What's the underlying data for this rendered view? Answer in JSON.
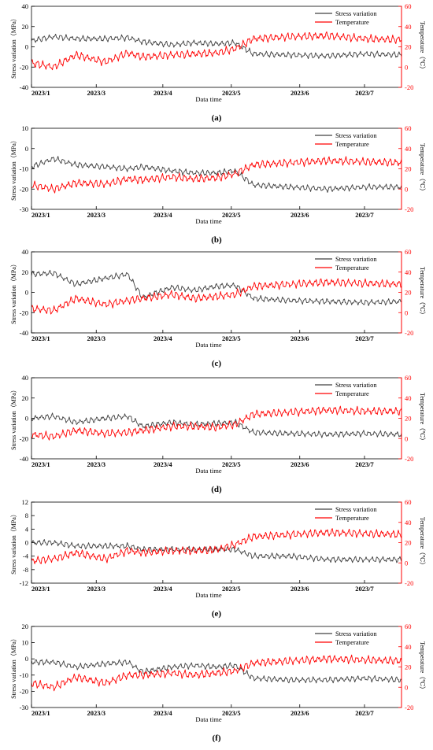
{
  "figure": {
    "colors": {
      "stress": "#404040",
      "temperature": "#ff0000",
      "axis": "#000000"
    },
    "xlabel": "Data time",
    "x_ticks": [
      "2023/1",
      "2023/3",
      "2023/4",
      "2023/5",
      "2023/6",
      "2023/7"
    ],
    "legend": {
      "stress": "Stress variation",
      "temperature": "Temperature"
    },
    "y_left_label": "Stress variation（MPa）",
    "y_right_label": "Temperature（℃）"
  },
  "chart_data": [
    {
      "type": "line",
      "panel_label": "(a)",
      "ylim": [
        -40,
        40
      ],
      "y_ticks": [
        -40,
        -20,
        0,
        20,
        40
      ],
      "y2lim": [
        -20,
        60
      ],
      "y2_ticks": [
        -20,
        0,
        20,
        40,
        60
      ],
      "grid": false,
      "legend_position": "top-right",
      "series": [
        {
          "name": "Stress variation",
          "axis": "left",
          "x": [
            0,
            0.06,
            0.12,
            0.2,
            0.26,
            0.3,
            0.38,
            0.44,
            0.5,
            0.55,
            0.6,
            0.7,
            0.8,
            0.9,
            1.0
          ],
          "y": [
            6,
            10,
            8,
            8,
            9,
            5,
            2,
            4,
            3,
            4,
            -7,
            -8,
            -9,
            -7,
            -8
          ]
        },
        {
          "name": "Temperature",
          "axis": "right",
          "x": [
            0,
            0.06,
            0.12,
            0.2,
            0.26,
            0.3,
            0.38,
            0.44,
            0.5,
            0.55,
            0.6,
            0.7,
            0.8,
            0.9,
            1.0
          ],
          "y": [
            4,
            0,
            12,
            5,
            14,
            10,
            12,
            13,
            14,
            18,
            28,
            30,
            31,
            28,
            27
          ]
        }
      ]
    },
    {
      "type": "line",
      "panel_label": "(b)",
      "ylim": [
        -30,
        10
      ],
      "y_ticks": [
        -30,
        -20,
        -10,
        0,
        10
      ],
      "y2lim": [
        -20,
        60
      ],
      "y2_ticks": [
        -20,
        0,
        20,
        40,
        60
      ],
      "grid": false,
      "legend_position": "top-right",
      "series": [
        {
          "name": "Stress variation",
          "axis": "left",
          "x": [
            0,
            0.06,
            0.12,
            0.2,
            0.26,
            0.3,
            0.38,
            0.44,
            0.5,
            0.55,
            0.6,
            0.7,
            0.8,
            0.9,
            1.0
          ],
          "y": [
            -9,
            -5,
            -8,
            -9,
            -10,
            -9,
            -11,
            -12,
            -12,
            -11,
            -18,
            -19,
            -20,
            -19,
            -19
          ]
        },
        {
          "name": "Temperature",
          "axis": "right",
          "x": [
            0,
            0.06,
            0.12,
            0.2,
            0.26,
            0.3,
            0.38,
            0.44,
            0.5,
            0.55,
            0.6,
            0.7,
            0.8,
            0.9,
            1.0
          ],
          "y": [
            4,
            0,
            6,
            5,
            10,
            9,
            12,
            10,
            11,
            15,
            24,
            26,
            28,
            27,
            26
          ]
        }
      ]
    },
    {
      "type": "line",
      "panel_label": "(c)",
      "ylim": [
        -40,
        40
      ],
      "y_ticks": [
        -40,
        -20,
        0,
        20,
        40
      ],
      "y2lim": [
        -20,
        60
      ],
      "y2_ticks": [
        -20,
        0,
        20,
        40,
        60
      ],
      "grid": false,
      "legend_position": "top-right",
      "series": [
        {
          "name": "Stress variation",
          "axis": "left",
          "x": [
            0,
            0.06,
            0.12,
            0.2,
            0.26,
            0.3,
            0.38,
            0.44,
            0.5,
            0.55,
            0.6,
            0.7,
            0.8,
            0.9,
            1.0
          ],
          "y": [
            18,
            19,
            8,
            14,
            18,
            -5,
            5,
            2,
            6,
            7,
            -6,
            -8,
            -9,
            -10,
            -9
          ]
        },
        {
          "name": "Temperature",
          "axis": "right",
          "x": [
            0,
            0.06,
            0.12,
            0.2,
            0.26,
            0.3,
            0.38,
            0.44,
            0.5,
            0.55,
            0.6,
            0.7,
            0.8,
            0.9,
            1.0
          ],
          "y": [
            4,
            2,
            14,
            8,
            12,
            14,
            18,
            14,
            16,
            18,
            26,
            28,
            30,
            29,
            28
          ]
        }
      ]
    },
    {
      "type": "line",
      "panel_label": "(d)",
      "ylim": [
        -40,
        40
      ],
      "y_ticks": [
        -40,
        -20,
        0,
        20,
        40
      ],
      "y2lim": [
        -20,
        60
      ],
      "y2_ticks": [
        -20,
        0,
        20,
        40,
        60
      ],
      "grid": false,
      "legend_position": "top-right",
      "series": [
        {
          "name": "Stress variation",
          "axis": "left",
          "x": [
            0,
            0.06,
            0.12,
            0.2,
            0.26,
            0.3,
            0.38,
            0.44,
            0.5,
            0.55,
            0.6,
            0.7,
            0.8,
            0.9,
            1.0
          ],
          "y": [
            0,
            2,
            -4,
            0,
            2,
            -8,
            -4,
            -6,
            -5,
            -4,
            -14,
            -15,
            -16,
            -15,
            -16
          ]
        },
        {
          "name": "Temperature",
          "axis": "right",
          "x": [
            0,
            0.06,
            0.12,
            0.2,
            0.26,
            0.3,
            0.38,
            0.44,
            0.5,
            0.55,
            0.6,
            0.7,
            0.8,
            0.9,
            1.0
          ],
          "y": [
            4,
            2,
            8,
            5,
            6,
            8,
            12,
            12,
            11,
            14,
            24,
            26,
            28,
            27,
            27
          ]
        }
      ]
    },
    {
      "type": "line",
      "panel_label": "(e)",
      "ylim": [
        -12,
        12
      ],
      "y_ticks": [
        -12,
        -8,
        -4,
        0,
        4,
        8,
        12
      ],
      "y2lim": [
        -20,
        60
      ],
      "y2_ticks": [
        -20,
        0,
        20,
        40,
        60
      ],
      "grid": false,
      "legend_position": "top-right",
      "series": [
        {
          "name": "Stress variation",
          "axis": "left",
          "x": [
            0,
            0.06,
            0.12,
            0.2,
            0.26,
            0.3,
            0.38,
            0.44,
            0.5,
            0.55,
            0.6,
            0.7,
            0.8,
            0.9,
            1.0
          ],
          "y": [
            0,
            0,
            -1,
            -1,
            -1,
            -2,
            -2,
            -2,
            -2,
            -2,
            -4,
            -4,
            -5,
            -5,
            -5
          ]
        },
        {
          "name": "Temperature",
          "axis": "right",
          "x": [
            0,
            0.06,
            0.12,
            0.2,
            0.26,
            0.3,
            0.38,
            0.44,
            0.5,
            0.55,
            0.6,
            0.7,
            0.8,
            0.9,
            1.0
          ],
          "y": [
            2,
            4,
            10,
            4,
            12,
            10,
            12,
            12,
            13,
            18,
            26,
            28,
            30,
            29,
            28
          ]
        }
      ]
    },
    {
      "type": "line",
      "panel_label": "(f)",
      "ylim": [
        -30,
        20
      ],
      "y_ticks": [
        -30,
        -20,
        -10,
        0,
        10,
        20
      ],
      "y2lim": [
        -20,
        60
      ],
      "y2_ticks": [
        -20,
        0,
        20,
        40,
        60
      ],
      "grid": false,
      "legend_position": "top-right",
      "series": [
        {
          "name": "Stress variation",
          "axis": "left",
          "x": [
            0,
            0.06,
            0.12,
            0.2,
            0.26,
            0.3,
            0.38,
            0.44,
            0.5,
            0.55,
            0.6,
            0.7,
            0.8,
            0.9,
            1.0
          ],
          "y": [
            -2,
            -2,
            -5,
            -3,
            -2,
            -8,
            -5,
            -4,
            -5,
            -4,
            -12,
            -13,
            -13,
            -12,
            -13
          ]
        },
        {
          "name": "Temperature",
          "axis": "right",
          "x": [
            0,
            0.06,
            0.12,
            0.2,
            0.26,
            0.3,
            0.38,
            0.44,
            0.5,
            0.55,
            0.6,
            0.7,
            0.8,
            0.9,
            1.0
          ],
          "y": [
            4,
            0,
            10,
            4,
            12,
            12,
            14,
            12,
            14,
            16,
            24,
            26,
            28,
            27,
            26
          ]
        }
      ]
    }
  ]
}
